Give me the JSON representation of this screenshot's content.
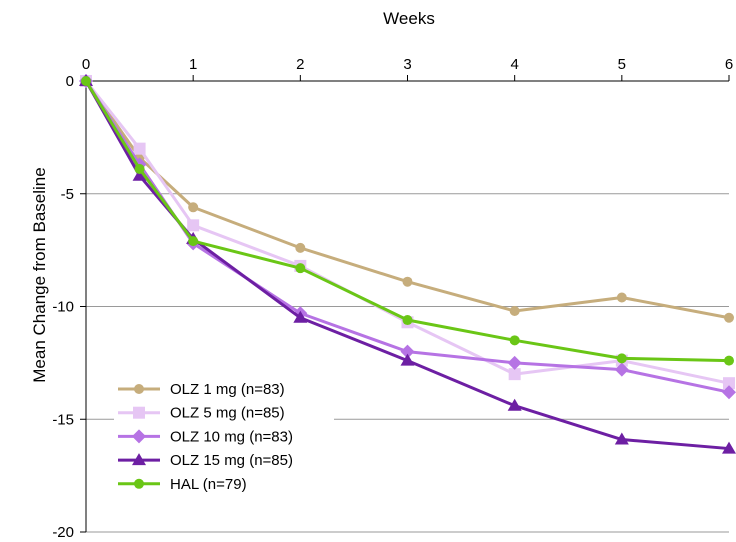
{
  "chart_data": {
    "type": "line",
    "xlabel": "Weeks",
    "ylabel": "Mean Change from Baseline",
    "xlim": [
      0,
      6
    ],
    "ylim": [
      -20,
      0
    ],
    "x_ticks": [
      "0",
      "1",
      "2",
      "3",
      "4",
      "5",
      "6"
    ],
    "y_ticks": [
      "0",
      "-5",
      "-10",
      "-15",
      "-20"
    ],
    "x_axis_position": "top",
    "grid": "horizontal",
    "legend_position": "bottom-left",
    "series": [
      {
        "name": "OLZ 1 mg (n=83)",
        "color": "#c6ad7c",
        "marker": "circle",
        "x": [
          0,
          0.5,
          1,
          2,
          3,
          4,
          5,
          6
        ],
        "y": [
          0,
          -3.4,
          -5.6,
          -7.4,
          -8.9,
          -10.2,
          -9.6,
          -10.5
        ]
      },
      {
        "name": "OLZ 5 mg (n=85)",
        "color": "#e6c6f4",
        "marker": "square",
        "x": [
          0,
          0.5,
          1,
          2,
          3,
          4,
          5,
          6
        ],
        "y": [
          0,
          -3.0,
          -6.4,
          -8.2,
          -10.7,
          -13.0,
          -12.4,
          -13.4
        ]
      },
      {
        "name": "OLZ 10 mg (n=83)",
        "color": "#b673e4",
        "marker": "diamond",
        "x": [
          0,
          0.5,
          1,
          2,
          3,
          4,
          5,
          6
        ],
        "y": [
          0,
          -3.7,
          -7.2,
          -10.3,
          -12.0,
          -12.5,
          -12.8,
          -13.8
        ]
      },
      {
        "name": "OLZ 15 mg (n=85)",
        "color": "#6d1fa3",
        "marker": "triangle",
        "x": [
          0,
          0.5,
          1,
          2,
          3,
          4,
          5,
          6
        ],
        "y": [
          0,
          -4.2,
          -7.0,
          -10.5,
          -12.4,
          -14.4,
          -15.9,
          -16.3
        ]
      },
      {
        "name": "HAL (n=79)",
        "color": "#6ac616",
        "marker": "circle",
        "x": [
          0,
          0.5,
          1,
          2,
          3,
          4,
          5,
          6
        ],
        "y": [
          0,
          -3.9,
          -7.1,
          -8.3,
          -10.6,
          -11.5,
          -12.3,
          -12.4
        ]
      }
    ]
  }
}
